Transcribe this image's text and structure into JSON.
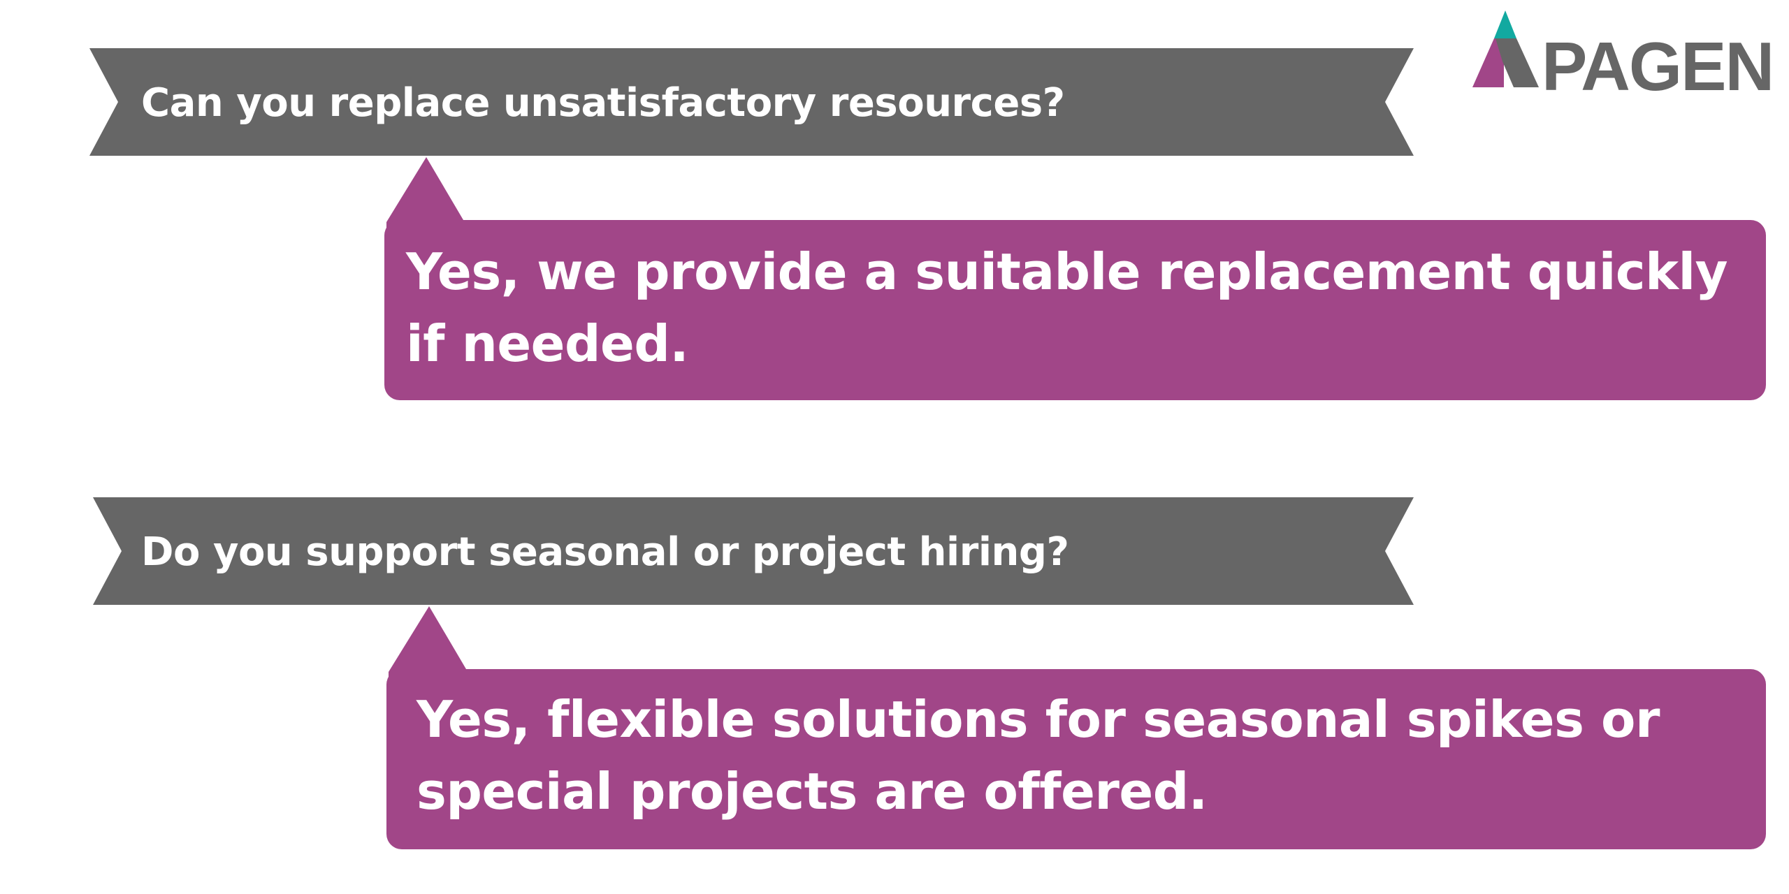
{
  "logo": {
    "text": "PAGEN",
    "icon": "triangle-a-icon"
  },
  "colors": {
    "banner": "#666666",
    "answer": "#a14688",
    "logo_teal": "#12a9a0",
    "logo_purple": "#a14688",
    "logo_gray": "#666666"
  },
  "faq": [
    {
      "question": "Can you replace unsatisfactory resources?",
      "answer": "Yes, we provide a suitable replacement quickly if needed."
    },
    {
      "question": "Do you support seasonal or project hiring?",
      "answer": "Yes, flexible solutions for seasonal spikes or special projects are offered."
    }
  ]
}
